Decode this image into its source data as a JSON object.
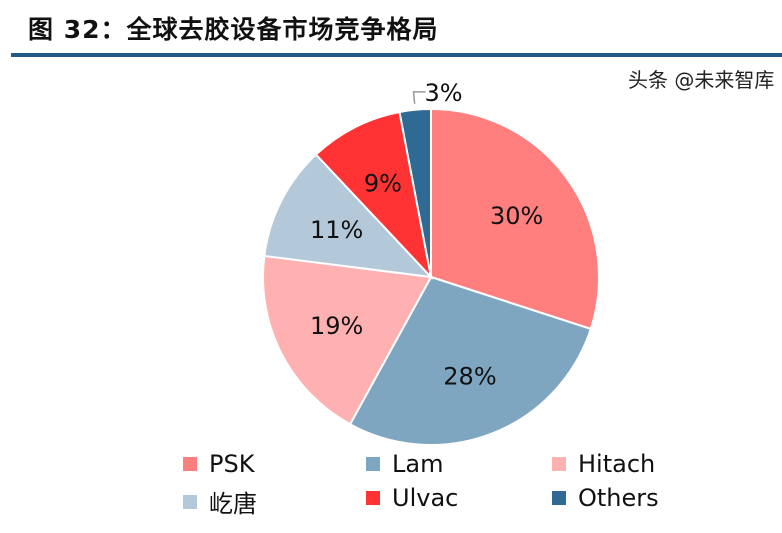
{
  "title": "图 32：全球去胶设备市场竞争格局",
  "watermark": "头条 @未来智库",
  "chart_data": {
    "type": "pie",
    "title": "",
    "start_angle": "top, clockwise",
    "slices": [
      {
        "name": "PSK",
        "value": 30,
        "label": "30%",
        "color": "#FF7F7F"
      },
      {
        "name": "Lam",
        "value": 28,
        "label": "28%",
        "color": "#7FA6C0"
      },
      {
        "name": "Hitach",
        "value": 19,
        "label": "19%",
        "color": "#FFB0B0"
      },
      {
        "name": "屹唐",
        "value": 11,
        "label": "11%",
        "color": "#B3C8D8"
      },
      {
        "name": "Ulvac",
        "value": 9,
        "label": "9%",
        "color": "#FF3333"
      },
      {
        "name": "Others",
        "value": 3,
        "label": "3%",
        "color": "#2E6A94"
      }
    ],
    "legend_placement": "bottom"
  }
}
